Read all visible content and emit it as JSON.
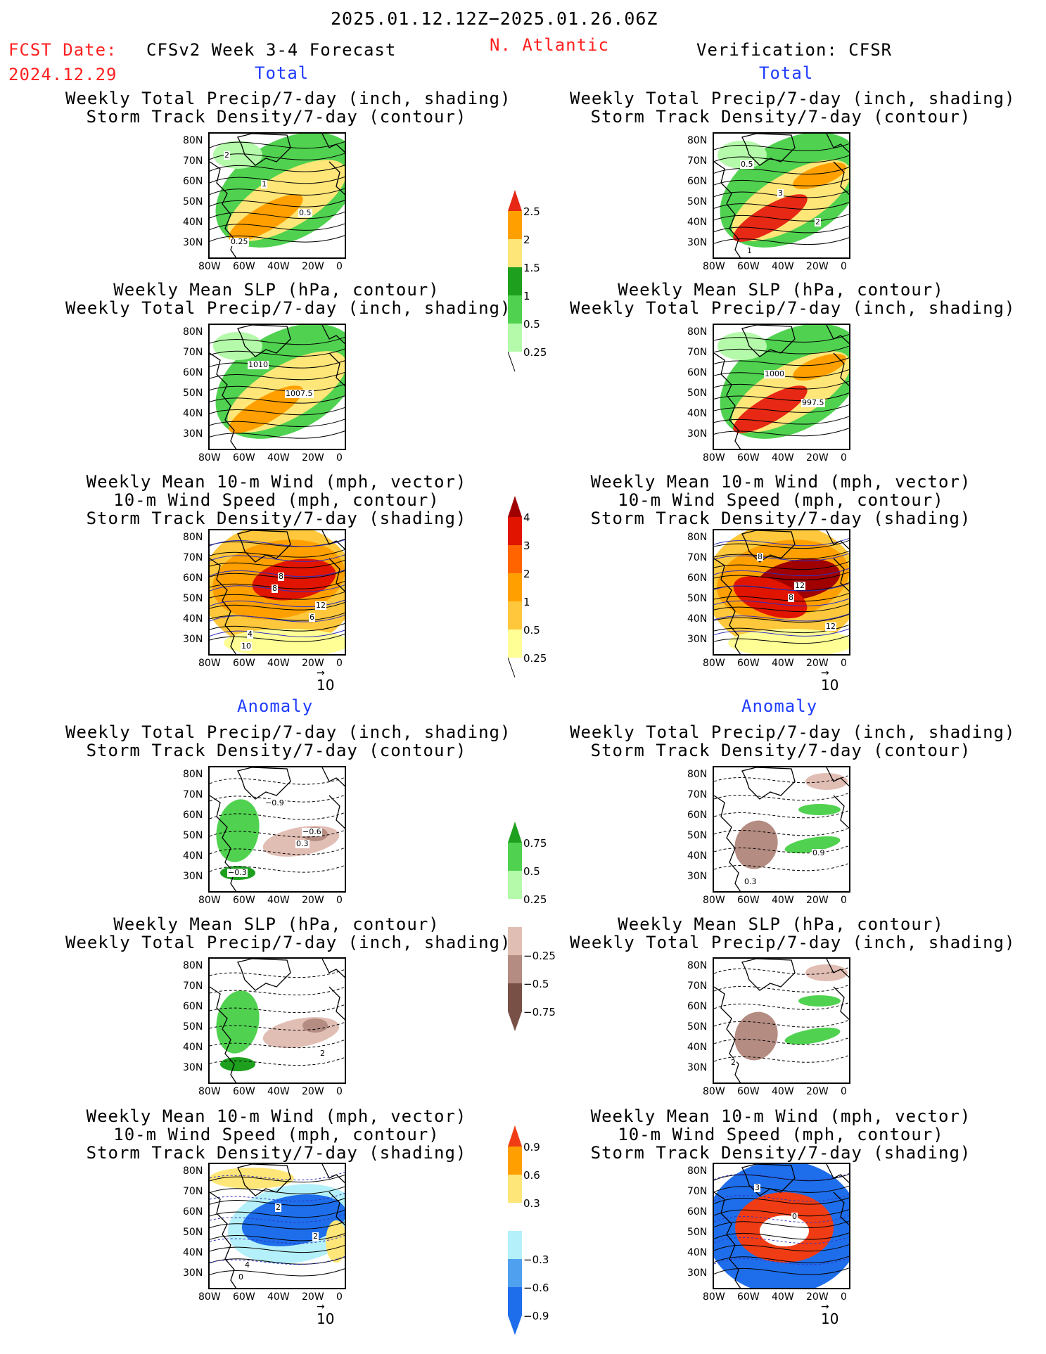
{
  "header": {
    "period": "2025.01.12.12Z−2025.01.26.06Z",
    "fcst_date_label": "FCST Date:",
    "fcst_date": "2024.12.29",
    "model": "CFSv2 Week 3-4 Forecast",
    "region": "N. Atlantic",
    "verification": "Verification: CFSR"
  },
  "sections": {
    "total": "Total",
    "anomaly": "Anomaly"
  },
  "titles": {
    "precip_storm": [
      "Weekly Total Precip/7-day (inch, shading)",
      "Storm Track Density/7-day (contour)"
    ],
    "slp_precip": [
      "Weekly Mean SLP (hPa, contour)",
      "Weekly Total Precip/7-day (inch, shading)"
    ],
    "wind_storm": [
      "Weekly Mean 10-m Wind (mph, vector)",
      "10-m Wind Speed (mph, contour)",
      "Storm Track Density/7-day (shading)"
    ]
  },
  "axes": {
    "lat": [
      "80N",
      "70N",
      "60N",
      "50N",
      "40N",
      "30N"
    ],
    "lon": [
      "80W",
      "60W",
      "40W",
      "20W",
      "0"
    ]
  },
  "vector_ref": "10",
  "colorbars": {
    "total_precip": {
      "labels": [
        "2.5",
        "2",
        "1.5",
        "1",
        "0.5",
        "0.25"
      ],
      "colors": [
        "#e62814",
        "#ffa000",
        "#ffe678",
        "#1ea01e",
        "#50d250",
        "#b4faaa"
      ]
    },
    "total_storm": {
      "labels": [
        "4",
        "3",
        "2",
        "1",
        "0.5",
        "0.25"
      ],
      "colors": [
        "#a00000",
        "#e11400",
        "#ff6400",
        "#ffa000",
        "#ffc83c",
        "#ffff96"
      ]
    },
    "anom_precip": {
      "labels": [
        "0.75",
        "0.5",
        "0.25",
        "−0.25",
        "−0.5",
        "−0.75"
      ],
      "colors": [
        "#1ea01e",
        "#50d250",
        "#b4faaa",
        "#ffffff",
        "#e1beb4",
        "#b48c82",
        "#785046"
      ]
    },
    "anom_storm": {
      "labels": [
        "0.9",
        "0.6",
        "0.3",
        "−0.3",
        "−0.6",
        "−0.9"
      ],
      "colors": [
        "#f03c14",
        "#ffa000",
        "#ffe678",
        "#ffffff",
        "#b4f0fa",
        "#50a0f0",
        "#1e6eeb"
      ]
    }
  },
  "contour_labels": {
    "fc_total_precip": [
      "2",
      "1",
      "0.5",
      "0.25"
    ],
    "ob_total_precip": [
      "0.5",
      "3",
      "2",
      "1"
    ],
    "fc_total_slp": [
      "1010",
      "1007.5"
    ],
    "ob_total_slp": [
      "1000",
      "997.5"
    ],
    "fc_total_wind": [
      "8",
      "6",
      "10",
      "8",
      "12",
      "4"
    ],
    "ob_total_wind": [
      "8",
      "12",
      "8",
      "12"
    ],
    "fc_anom_precip": [
      "0.3",
      "−0.3",
      "−0.9",
      "−0.6"
    ],
    "ob_anom_precip": [
      "0.9",
      "0.3"
    ],
    "fc_anom_slp": [
      "2"
    ],
    "ob_anom_slp": [
      "2"
    ],
    "fc_anom_wind": [
      "0",
      "2",
      "2",
      "4"
    ],
    "ob_anom_wind": [
      "3",
      "0"
    ]
  }
}
